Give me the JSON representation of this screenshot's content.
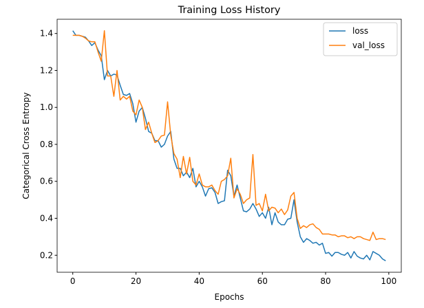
{
  "chart_data": {
    "type": "line",
    "title": "Training Loss History",
    "x_label": "Epochs",
    "y_label": "Categorical Cross Entropy",
    "x": [
      0,
      1,
      2,
      3,
      4,
      5,
      6,
      7,
      8,
      9,
      10,
      11,
      12,
      13,
      14,
      15,
      16,
      17,
      18,
      19,
      20,
      21,
      22,
      23,
      24,
      25,
      26,
      27,
      28,
      29,
      30,
      31,
      32,
      33,
      34,
      35,
      36,
      37,
      38,
      39,
      40,
      41,
      42,
      43,
      44,
      45,
      46,
      47,
      48,
      49,
      50,
      51,
      52,
      53,
      54,
      55,
      56,
      57,
      58,
      59,
      60,
      61,
      62,
      63,
      64,
      65,
      66,
      67,
      68,
      69,
      70,
      71,
      72,
      73,
      74,
      75,
      76,
      77,
      78,
      79,
      80,
      81,
      82,
      83,
      84,
      85,
      86,
      87,
      88,
      89,
      90,
      91,
      92,
      93,
      94,
      95,
      96,
      97,
      98,
      99
    ],
    "series": [
      {
        "name": "loss",
        "color": "#1f77b4",
        "values": [
          1.415,
          1.39,
          1.39,
          1.385,
          1.38,
          1.36,
          1.335,
          1.35,
          1.31,
          1.28,
          1.15,
          1.2,
          1.17,
          1.18,
          1.175,
          1.12,
          1.07,
          1.065,
          1.075,
          1.02,
          0.92,
          0.98,
          1.0,
          0.94,
          0.87,
          0.86,
          0.82,
          0.82,
          0.785,
          0.8,
          0.845,
          0.87,
          0.72,
          0.67,
          0.67,
          0.63,
          0.65,
          0.62,
          0.67,
          0.57,
          0.6,
          0.57,
          0.52,
          0.56,
          0.565,
          0.54,
          0.48,
          0.49,
          0.495,
          0.66,
          0.63,
          0.52,
          0.58,
          0.51,
          0.44,
          0.435,
          0.45,
          0.48,
          0.45,
          0.41,
          0.43,
          0.4,
          0.46,
          0.365,
          0.43,
          0.38,
          0.365,
          0.365,
          0.395,
          0.4,
          0.5,
          0.38,
          0.3,
          0.27,
          0.29,
          0.28,
          0.265,
          0.27,
          0.255,
          0.265,
          0.21,
          0.215,
          0.195,
          0.215,
          0.215,
          0.205,
          0.2,
          0.215,
          0.185,
          0.22,
          0.195,
          0.185,
          0.18,
          0.2,
          0.175,
          0.22,
          0.21,
          0.2,
          0.18,
          0.17
        ]
      },
      {
        "name": "val_loss",
        "color": "#ff7f0e",
        "values": [
          1.39,
          1.39,
          1.39,
          1.385,
          1.375,
          1.36,
          1.355,
          1.355,
          1.3,
          1.25,
          1.415,
          1.17,
          1.17,
          1.06,
          1.2,
          1.04,
          1.06,
          1.045,
          1.06,
          0.98,
          0.96,
          1.04,
          1.0,
          0.88,
          0.92,
          0.86,
          0.81,
          0.82,
          0.845,
          0.85,
          1.03,
          0.85,
          0.75,
          0.72,
          0.62,
          0.735,
          0.64,
          0.73,
          0.6,
          0.58,
          0.64,
          0.58,
          0.57,
          0.57,
          0.58,
          0.55,
          0.53,
          0.6,
          0.61,
          0.63,
          0.725,
          0.51,
          0.56,
          0.53,
          0.48,
          0.5,
          0.51,
          0.745,
          0.47,
          0.48,
          0.44,
          0.53,
          0.44,
          0.46,
          0.455,
          0.43,
          0.45,
          0.42,
          0.445,
          0.52,
          0.54,
          0.4,
          0.345,
          0.36,
          0.35,
          0.365,
          0.37,
          0.35,
          0.34,
          0.315,
          0.315,
          0.315,
          0.31,
          0.31,
          0.3,
          0.305,
          0.305,
          0.295,
          0.3,
          0.29,
          0.3,
          0.3,
          0.29,
          0.285,
          0.28,
          0.325,
          0.285,
          0.29,
          0.29,
          0.285
        ]
      }
    ],
    "xlim": [
      -4.95,
      103.95
    ],
    "ylim": [
      0.108,
      1.477
    ],
    "xticks": [
      0,
      20,
      40,
      60,
      80,
      100
    ],
    "yticks": [
      0.2,
      0.4,
      0.6,
      0.8,
      {
        "value": 1,
        "label": "1.0"
      },
      1.2,
      1.4
    ],
    "legend": "upper right"
  }
}
